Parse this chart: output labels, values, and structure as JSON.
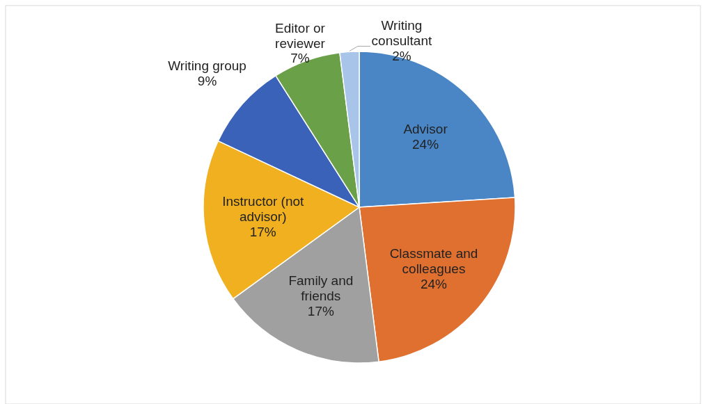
{
  "chart_data": {
    "type": "pie",
    "categories": [
      "Advisor",
      "Classmate and colleagues",
      "Family and friends",
      "Instructor (not advisor)",
      "Writing group",
      "Editor or reviewer",
      "Writing consultant"
    ],
    "values": [
      24,
      24,
      17,
      17,
      9,
      7,
      2
    ],
    "colors": [
      "#4a86c6",
      "#e07030",
      "#a0a0a0",
      "#f0b020",
      "#3a62b8",
      "#6aa048",
      "#a8c4e8"
    ],
    "value_labels": [
      "24%",
      "24%",
      "17%",
      "17%",
      "9%",
      "7%",
      "2%"
    ]
  }
}
